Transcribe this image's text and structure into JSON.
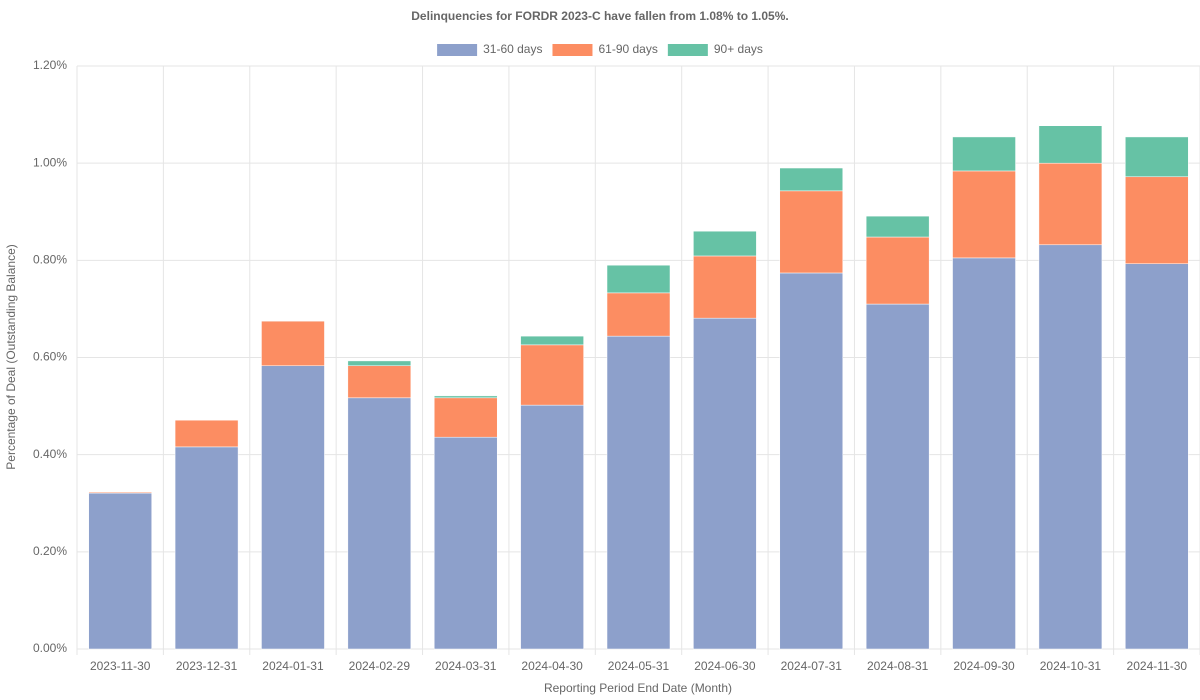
{
  "chart_data": {
    "type": "stacked_bar",
    "title": "Delinquencies for FORDR 2023-C have fallen from 1.08% to 1.05%.",
    "x_label": "Reporting Period End Date (Month)",
    "y_label": "Percentage of Deal (Outstanding Balance)",
    "categories": [
      "2023-11-30",
      "2023-12-31",
      "2024-01-31",
      "2024-02-29",
      "2024-03-31",
      "2024-04-30",
      "2024-05-31",
      "2024-06-30",
      "2024-07-31",
      "2024-08-31",
      "2024-09-30",
      "2024-10-31",
      "2024-11-30"
    ],
    "series": [
      {
        "name": "31-60 days",
        "color": "#8da0cb",
        "values": [
          0.321,
          0.416,
          0.583,
          0.517,
          0.436,
          0.502,
          0.644,
          0.681,
          0.774,
          0.71,
          0.805,
          0.832,
          0.793
        ]
      },
      {
        "name": "61-90 days",
        "color": "#fc8d62",
        "values": [
          0.002,
          0.055,
          0.092,
          0.066,
          0.081,
          0.124,
          0.089,
          0.128,
          0.169,
          0.138,
          0.179,
          0.168,
          0.179
        ]
      },
      {
        "name": "90+ days",
        "color": "#66c2a5",
        "values": [
          0,
          0,
          0.001,
          0.01,
          0.004,
          0.018,
          0.057,
          0.051,
          0.047,
          0.043,
          0.07,
          0.077,
          0.082
        ]
      }
    ],
    "ylim": [
      0,
      1.2
    ],
    "yticks": [
      {
        "value": 0,
        "label": "0.00%"
      },
      {
        "value": 0.2,
        "label": "0.20%"
      },
      {
        "value": 0.4,
        "label": "0.40%"
      },
      {
        "value": 0.6,
        "label": "0.60%"
      },
      {
        "value": 0.8,
        "label": "0.80%"
      },
      {
        "value": 1.0,
        "label": "1.00%"
      },
      {
        "value": 1.2,
        "label": "1.20%"
      }
    ],
    "grid": true,
    "legend": "top"
  }
}
